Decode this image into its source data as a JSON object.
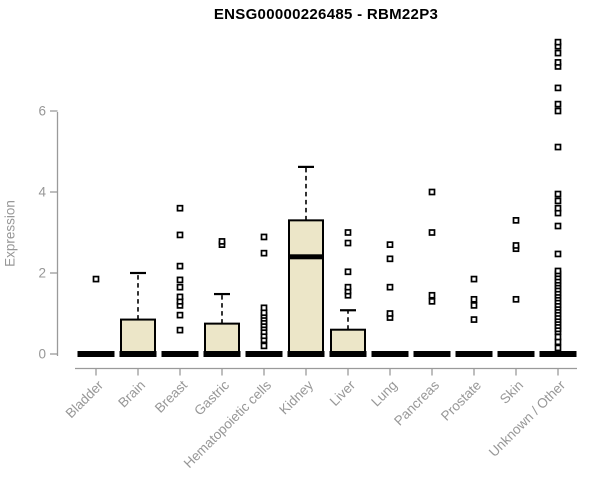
{
  "title": "ENSG00000226485 - RBM22P3",
  "colors": {
    "box_fill": "#ece6c8",
    "box_border": "#000000",
    "median": "#000000",
    "axis": "#9a9a9a",
    "tick_text": "#979797",
    "title_text": "#000000",
    "background": "#ffffff"
  },
  "chart_data": {
    "type": "boxplot",
    "title": "ENSG00000226485 - RBM22P3",
    "xlabel": "",
    "ylabel": "Expression",
    "yticks": [
      0,
      2,
      4,
      6
    ],
    "ylim": [
      0,
      7.8
    ],
    "grid": false,
    "legend": "none",
    "categories": [
      "Bladder",
      "Brain",
      "Breast",
      "Gastric",
      "Hematopoietic cells",
      "Kidney",
      "Liver",
      "Lung",
      "Pancreas",
      "Prostate",
      "Skin",
      "Unknown / Other"
    ],
    "boxes": [
      {
        "category": "Bladder",
        "whisker_low": 0,
        "q1": 0,
        "median": 0,
        "q3": 0,
        "whisker_high": 0,
        "outliers": [
          1.85
        ]
      },
      {
        "category": "Brain",
        "whisker_low": 0,
        "q1": 0,
        "median": 0,
        "q3": 0.85,
        "whisker_high": 2.0,
        "outliers": []
      },
      {
        "category": "Breast",
        "whisker_low": 0,
        "q1": 0,
        "median": 0,
        "q3": 0,
        "whisker_high": 0,
        "outliers": [
          0.59,
          0.96,
          1.2,
          1.3,
          1.41,
          1.65,
          1.83,
          2.17,
          2.94,
          3.6
        ]
      },
      {
        "category": "Gastric",
        "whisker_low": 0,
        "q1": 0,
        "median": 0,
        "q3": 0.75,
        "whisker_high": 1.48,
        "outliers": [
          2.7,
          2.78
        ]
      },
      {
        "category": "Hematopoietic cells",
        "whisker_low": 0,
        "q1": 0,
        "median": 0,
        "q3": 0,
        "whisker_high": 0,
        "outliers": [
          0.2,
          0.35,
          0.45,
          0.55,
          0.65,
          0.72,
          0.8,
          0.88,
          0.95,
          1.02,
          1.14,
          2.49,
          2.89
        ]
      },
      {
        "category": "Kidney",
        "whisker_low": 0,
        "q1": 0,
        "median": 2.4,
        "q3": 3.3,
        "whisker_high": 4.62,
        "outliers": []
      },
      {
        "category": "Liver",
        "whisker_low": 0,
        "q1": 0,
        "median": 0,
        "q3": 0.6,
        "whisker_high": 1.08,
        "outliers": [
          1.45,
          1.55,
          1.65,
          2.03,
          2.74,
          3.0
        ]
      },
      {
        "category": "Lung",
        "whisker_low": 0,
        "q1": 0,
        "median": 0,
        "q3": 0,
        "whisker_high": 0,
        "outliers": [
          0.9,
          1.0,
          1.65,
          2.35,
          2.7
        ]
      },
      {
        "category": "Pancreas",
        "whisker_low": 0,
        "q1": 0,
        "median": 0,
        "q3": 0,
        "whisker_high": 0,
        "outliers": [
          1.3,
          1.45,
          3.0,
          4.0
        ]
      },
      {
        "category": "Prostate",
        "whisker_low": 0,
        "q1": 0,
        "median": 0,
        "q3": 0,
        "whisker_high": 0,
        "outliers": [
          0.85,
          1.2,
          1.35,
          1.85
        ]
      },
      {
        "category": "Skin",
        "whisker_low": 0,
        "q1": 0,
        "median": 0,
        "q3": 0,
        "whisker_high": 0,
        "outliers": [
          1.35,
          2.6,
          2.68,
          3.3
        ]
      },
      {
        "category": "Unknown / Other",
        "whisker_low": 0,
        "q1": 0,
        "median": 0,
        "q3": 0,
        "whisker_high": 0,
        "outliers": [
          0.15,
          0.3,
          0.42,
          0.55,
          0.62,
          0.7,
          0.78,
          0.85,
          0.92,
          1.0,
          1.08,
          1.15,
          1.22,
          1.3,
          1.38,
          1.45,
          1.52,
          1.6,
          1.68,
          1.75,
          1.82,
          1.9,
          1.98,
          2.05,
          2.47,
          3.16,
          3.48,
          3.6,
          3.78,
          3.95,
          5.11,
          6.0,
          6.17,
          6.57,
          7.1,
          7.2,
          7.43,
          7.6,
          7.7
        ]
      }
    ]
  }
}
